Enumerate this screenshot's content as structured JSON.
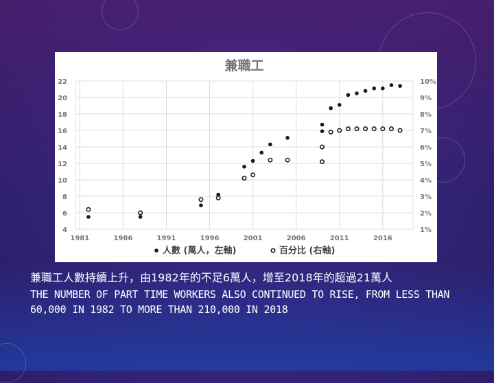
{
  "chart_data": {
    "type": "scatter",
    "title": "兼職工",
    "x_ticks": [
      "1981",
      "1986",
      "1991",
      "1996",
      "2001",
      "2006",
      "2011",
      "2016"
    ],
    "xlim": [
      1980.5,
      2019.5
    ],
    "y_left_ticks": [
      "4",
      "6",
      "8",
      "10",
      "12",
      "14",
      "16",
      "18",
      "20",
      "22"
    ],
    "y_left_lim": [
      4,
      22
    ],
    "y_right_ticks": [
      "1%",
      "2%",
      "3%",
      "4%",
      "5%",
      "6%",
      "7%",
      "8%",
      "9%",
      "10%"
    ],
    "y_right_lim": [
      1,
      10
    ],
    "grid": true,
    "series": [
      {
        "name": "人數 (萬人，左軸)",
        "axis": "left",
        "marker": "filled",
        "points": [
          [
            1982,
            5.5
          ],
          [
            1988,
            5.5
          ],
          [
            1995,
            6.9
          ],
          [
            1997,
            8.2
          ],
          [
            2000,
            11.6
          ],
          [
            2001,
            12.3
          ],
          [
            2002,
            13.3
          ],
          [
            2003,
            14.3
          ],
          [
            2005,
            15.1
          ],
          [
            2009,
            15.9
          ],
          [
            2009,
            16.7
          ],
          [
            2010,
            18.7
          ],
          [
            2011,
            19.1
          ],
          [
            2012,
            20.3
          ],
          [
            2013,
            20.5
          ],
          [
            2014,
            20.8
          ],
          [
            2015,
            21.1
          ],
          [
            2016,
            21.1
          ],
          [
            2017,
            21.5
          ],
          [
            2018,
            21.4
          ]
        ]
      },
      {
        "name": "百分比 (右軸)",
        "axis": "right",
        "marker": "hollow",
        "points": [
          [
            1982,
            2.2
          ],
          [
            1988,
            2.0
          ],
          [
            1995,
            2.8
          ],
          [
            1997,
            2.9
          ],
          [
            2000,
            4.1
          ],
          [
            2001,
            4.3
          ],
          [
            2003,
            5.2
          ],
          [
            2005,
            5.2
          ],
          [
            2009,
            5.1
          ],
          [
            2009,
            6.0
          ],
          [
            2010,
            6.9
          ],
          [
            2011,
            7.0
          ],
          [
            2012,
            7.1
          ],
          [
            2013,
            7.1
          ],
          [
            2014,
            7.1
          ],
          [
            2015,
            7.1
          ],
          [
            2016,
            7.1
          ],
          [
            2017,
            7.1
          ],
          [
            2018,
            7.0
          ]
        ]
      }
    ],
    "legend_position": "bottom",
    "colors": {
      "marker": "#1a1a1a",
      "grid": "#dcdcdc",
      "title": "#757575",
      "ticks": "#757575",
      "legend_text": "#444444"
    }
  },
  "caption": {
    "zh": "兼職工人數持續上升，由1982年的不足6萬人，增至2018年的超過21萬人",
    "en": "THE NUMBER OF PART TIME WORKERS ALSO CONTINUED TO RISE, FROM LESS THAN 60,000 IN 1982 TO MORE THAN 210,000 IN 2018"
  }
}
